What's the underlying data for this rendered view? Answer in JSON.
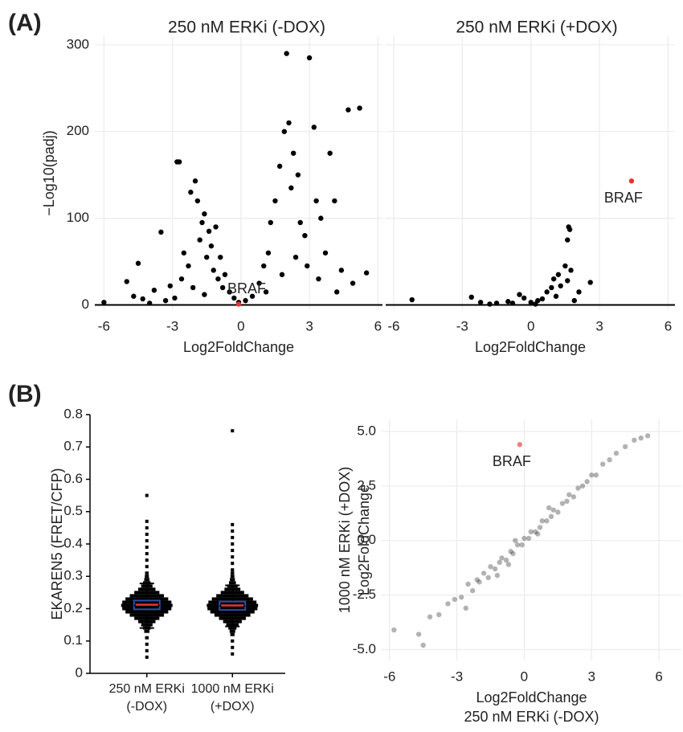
{
  "panel_labels": [
    "(A)",
    "(B)"
  ],
  "chart_data": [
    {
      "type": "scatter",
      "title": "250 nM ERKi (-DOX)",
      "xlabel": "Log2FoldChange",
      "ylabel": "−Log10(padj)",
      "xlim": [
        -6.4,
        6.2
      ],
      "ylim": [
        -6,
        310
      ],
      "xticks": [
        -6,
        -3,
        0,
        3,
        6
      ],
      "yticks": [
        0,
        100,
        200,
        300
      ],
      "ytick_labels": true,
      "grid": true,
      "zero_line": true,
      "series": [
        {
          "color": "#000000",
          "alpha": 1,
          "x": [
            -6,
            -5,
            -4.7,
            -4.5,
            -4.3,
            -3.8,
            -3.5,
            -3.1,
            -2.8,
            -2.7,
            -2.5,
            -2.3,
            -2.2,
            -2,
            -1.9,
            -1.8,
            -1.7,
            -1.6,
            -1.5,
            -1.4,
            -1.3,
            -1.2,
            -1.1,
            -1,
            -0.9,
            -0.8,
            -0.7,
            -0.5,
            -0.3,
            -0.1,
            -2.6,
            -2.1,
            -1.6,
            -3.3,
            -4,
            -2.9,
            0.2,
            0.5,
            0.8,
            1,
            1.2,
            1.3,
            1.5,
            1.7,
            1.9,
            2,
            2.1,
            2.2,
            2.3,
            2.5,
            2.6,
            2.8,
            3,
            3.2,
            3.3,
            3.5,
            3.7,
            3.9,
            4.1,
            4.4,
            4.7,
            4.9,
            5.2,
            5.5,
            3.4,
            2.9,
            1.8,
            1.1,
            2.4,
            4.2
          ],
          "y": [
            3,
            27,
            10,
            48,
            7,
            17,
            84,
            22,
            165,
            165,
            60,
            45,
            130,
            143,
            120,
            75,
            95,
            105,
            55,
            85,
            68,
            40,
            90,
            30,
            55,
            20,
            35,
            15,
            8,
            3,
            30,
            20,
            12,
            5,
            2,
            8,
            5,
            10,
            25,
            45,
            60,
            95,
            120,
            160,
            200,
            290,
            210,
            135,
            175,
            150,
            95,
            80,
            285,
            205,
            120,
            100,
            60,
            175,
            120,
            40,
            225,
            25,
            227,
            37,
            30,
            45,
            35,
            15,
            55,
            15
          ]
        },
        {
          "name": "BRAF",
          "color": "#e8332d",
          "alpha": 1,
          "label_position": "above",
          "x": [
            -0.1
          ],
          "y": [
            1
          ]
        }
      ]
    },
    {
      "type": "scatter",
      "title": "250 nM ERKi (+DOX)",
      "xlabel": "Log2FoldChange",
      "xlim": [
        -6.35,
        6.3
      ],
      "ylim": [
        -6,
        310
      ],
      "xticks": [
        -6,
        -3,
        0,
        3,
        6
      ],
      "yticks": [
        0,
        100,
        200,
        300
      ],
      "ytick_labels": false,
      "grid": true,
      "zero_line": true,
      "series": [
        {
          "color": "#000000",
          "alpha": 1,
          "x": [
            -5.2,
            -2.6,
            -2.2,
            -1.5,
            -1,
            -0.5,
            -0.3,
            0,
            0.3,
            0.5,
            0.7,
            0.9,
            1,
            1.1,
            1.2,
            1.3,
            1.5,
            1.6,
            1.7,
            1.65,
            1.6,
            1.75,
            2.1,
            2.6,
            -1.8,
            -0.8,
            0.2,
            1.9
          ],
          "y": [
            6,
            9,
            3,
            2,
            4,
            12,
            8,
            3,
            5,
            7,
            15,
            20,
            30,
            10,
            35,
            22,
            45,
            28,
            87,
            90,
            75,
            40,
            15,
            26,
            1,
            2,
            1,
            5
          ]
        },
        {
          "name": "BRAF",
          "color": "#e8332d",
          "alpha": 1,
          "label_position": "below",
          "x": [
            4.4
          ],
          "y": [
            143
          ]
        }
      ]
    },
    {
      "type": "box",
      "ylabel": "EKAREN5 (FRET/CFP)",
      "ylim": [
        0,
        0.8
      ],
      "yticks": [
        0,
        0.1,
        0.2,
        0.3,
        0.4,
        0.5,
        0.6,
        0.7,
        0.8
      ],
      "categories": [
        "250 nM ERKi\n(-DOX)",
        "1000 nM ERKi\n(+DOX)"
      ],
      "box_color": "#2b4fa8",
      "mean_color": "#e8332d",
      "groups": [
        {
          "q1": 0.198,
          "median": 0.21,
          "q3": 0.225,
          "whisker_low": 0.14,
          "whisker_high": 0.278,
          "mean": 0.212,
          "points": [
            0.55,
            0.47,
            0.45,
            0.43,
            0.41,
            0.39,
            0.37,
            0.35,
            0.33,
            0.31,
            0.3,
            0.29,
            0.28,
            0.27,
            0.26,
            0.25,
            0.24,
            0.23,
            0.22,
            0.21,
            0.2,
            0.19,
            0.18,
            0.17,
            0.16,
            0.15,
            0.14,
            0.13,
            0.11,
            0.09,
            0.07,
            0.05
          ]
        },
        {
          "q1": 0.196,
          "median": 0.208,
          "q3": 0.222,
          "whisker_low": 0.145,
          "whisker_high": 0.272,
          "mean": 0.21,
          "points": [
            0.75,
            0.46,
            0.44,
            0.42,
            0.4,
            0.38,
            0.36,
            0.34,
            0.32,
            0.31,
            0.3,
            0.29,
            0.28,
            0.27,
            0.26,
            0.25,
            0.24,
            0.23,
            0.22,
            0.21,
            0.2,
            0.19,
            0.18,
            0.17,
            0.16,
            0.15,
            0.14,
            0.13,
            0.12,
            0.1,
            0.08,
            0.06
          ]
        }
      ]
    },
    {
      "type": "scatter",
      "xlabel": [
        "Log2FoldChange",
        "250 nM ERKi (-DOX)"
      ],
      "ylabel": [
        "1000 nM ERKi (+DOX)",
        "Log2FoldChange"
      ],
      "xlim": [
        -6.35,
        7
      ],
      "ylim": [
        -5.5,
        5.55
      ],
      "xticks": [
        -6,
        -3,
        0,
        3,
        6
      ],
      "yticks": [
        {
          "value": -5,
          "label": "-5.0"
        },
        {
          "value": -2.5,
          "label": "-2.5"
        },
        {
          "value": 0,
          "label": "0.0"
        },
        {
          "value": 2.5,
          "label": "2.5"
        },
        {
          "value": 5,
          "label": "5.0"
        }
      ],
      "ytick_labels": true,
      "grid": true,
      "zero_line": false,
      "series": [
        {
          "color": "#000000",
          "alpha": 0.3,
          "x": [
            -5.8,
            -4.7,
            -4.5,
            -4.2,
            -3.8,
            -3.4,
            -3.1,
            -2.8,
            -2.5,
            -2.3,
            -2.1,
            -2,
            -1.8,
            -1.6,
            -1.5,
            -1.3,
            -1.1,
            -1,
            -0.8,
            -0.6,
            -0.5,
            -0.3,
            -0.1,
            0,
            0.2,
            0.3,
            0.5,
            0.7,
            0.8,
            1,
            1.2,
            1.3,
            1.5,
            1.7,
            1.9,
            2,
            2.2,
            2.4,
            2.6,
            2.8,
            3,
            3.2,
            3.5,
            3.8,
            4.1,
            4.5,
            4.9,
            5.2,
            5.5,
            -1.2,
            -0.4,
            0.6,
            1.1,
            -2.6,
            -0.7
          ],
          "y": [
            -4.1,
            -4.3,
            -4.8,
            -3.5,
            -3.4,
            -2.9,
            -2.7,
            -2.6,
            -2,
            -2.3,
            -1.8,
            -1.9,
            -1.5,
            -1.7,
            -1.2,
            -1.3,
            -1,
            -0.8,
            -0.9,
            -0.5,
            -0.6,
            -0.2,
            -0.2,
            0.1,
            0.1,
            0.4,
            0.4,
            0.6,
            0.9,
            0.9,
            1.1,
            1.4,
            1.3,
            1.7,
            1.8,
            2.1,
            2,
            2.4,
            2.5,
            2.7,
            3,
            3,
            3.5,
            3.7,
            4,
            4.3,
            4.6,
            4.7,
            4.8,
            -1.6,
            0,
            0.3,
            1.5,
            -3.1,
            -1.1
          ]
        },
        {
          "name": "BRAF",
          "color": "#f08080",
          "alpha": 1,
          "label_position": "below",
          "x": [
            -0.2
          ],
          "y": [
            4.4
          ]
        }
      ]
    }
  ]
}
